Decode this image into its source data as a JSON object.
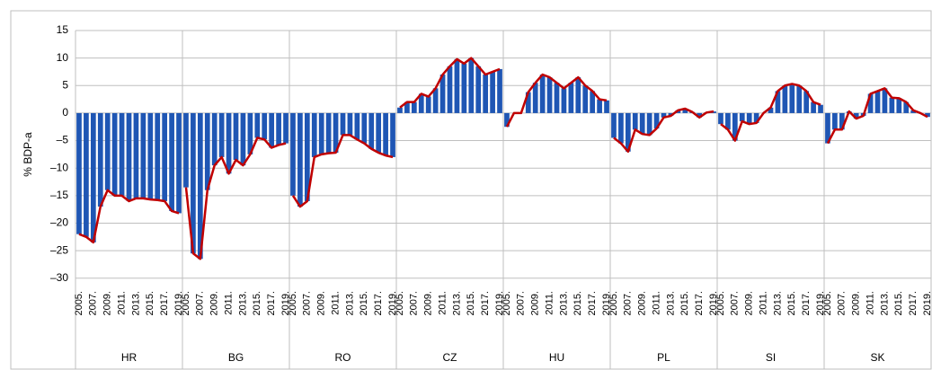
{
  "chart_data": {
    "type": "bar",
    "ylabel": "% BDP-a",
    "categories": [
      "2005.",
      null,
      "2007.",
      null,
      "2009.",
      null,
      "2011.",
      null,
      "2013.",
      null,
      "2015.",
      null,
      "2017.",
      null,
      "2019."
    ],
    "groups": [
      {
        "name": "HR",
        "values": [
          -22,
          -22.5,
          -23.5,
          -17,
          -14,
          -15,
          -15,
          -16,
          -15.5,
          -15.5,
          -15.7,
          -15.8,
          -16,
          -17.8,
          -18.2
        ]
      },
      {
        "name": "BG",
        "values": [
          -13.5,
          -25.5,
          -26.5,
          -14,
          -9.5,
          -8,
          -11,
          -8.5,
          -9.5,
          -7.5,
          -4.5,
          -4.8,
          -6.3,
          -5.8,
          -5.5
        ]
      },
      {
        "name": "RO",
        "values": [
          -15,
          -17,
          -16,
          -8,
          -7.5,
          -7.3,
          -7.2,
          -4,
          -4,
          -4.8,
          -5.5,
          -6.5,
          -7.2,
          -7.7,
          -8
        ]
      },
      {
        "name": "CZ",
        "values": [
          1,
          2,
          2,
          3.5,
          3,
          4.5,
          7,
          8.5,
          9.8,
          9,
          10,
          8.5,
          7,
          7.5,
          8
        ]
      },
      {
        "name": "HU",
        "values": [
          -2.5,
          0,
          0,
          3.8,
          5.5,
          7,
          6.5,
          5.5,
          4.5,
          5.5,
          6.5,
          5,
          4,
          2.5,
          2.3
        ]
      },
      {
        "name": "PL",
        "values": [
          -4.5,
          -5.5,
          -7,
          -3,
          -3.8,
          -4,
          -2.8,
          -0.8,
          -0.5,
          0.5,
          0.8,
          0.2,
          -0.8,
          0.1,
          0.3
        ]
      },
      {
        "name": "SI",
        "values": [
          -2,
          -3,
          -5,
          -1.5,
          -2,
          -1.8,
          0,
          1,
          4,
          5,
          5.3,
          5,
          4,
          2,
          1.5
        ]
      },
      {
        "name": "SK",
        "values": [
          -5.5,
          -3,
          -3,
          0.3,
          -1,
          -0.5,
          3.5,
          4,
          4.5,
          2.8,
          2.7,
          2,
          0.5,
          0,
          -0.7
        ]
      }
    ],
    "color": "#1f56b4",
    "line_color": "#c00000",
    "ylim": [
      -32,
      15
    ],
    "yticks": [
      {
        "value": -30,
        "label": "–30"
      },
      {
        "value": -25,
        "label": "–25"
      },
      {
        "value": -20,
        "label": "–20"
      },
      {
        "value": -15,
        "label": "–15"
      },
      {
        "value": -10,
        "label": "–10"
      },
      {
        "value": -5,
        "label": "–5"
      },
      0,
      5,
      10,
      15
    ],
    "grid": true
  }
}
